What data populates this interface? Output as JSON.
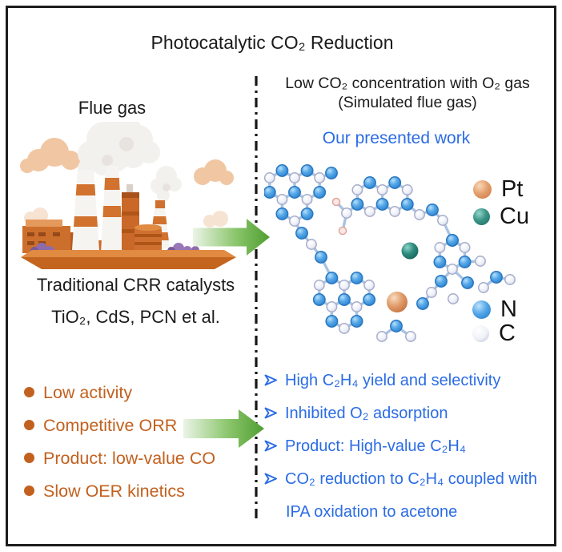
{
  "figure": {
    "title": "Photocatalytic CO₂ Reduction"
  },
  "left_panel": {
    "flue_gas_label": "Flue gas",
    "catalysts_title": "Traditional CRR catalysts",
    "catalysts_examples": "TiO₂, CdS, PCN et al.",
    "text_color": "#c2611f",
    "drawbacks": [
      "Low activity",
      "Competitive ORR",
      "Product: low-value CO",
      "Slow OER kinetics"
    ]
  },
  "right_panel": {
    "condition_line1": "Low CO₂ concentration with O₂ gas",
    "condition_line2": "(Simulated flue gas)",
    "highlight": "Our presented work",
    "text_color": "#2b6ce5",
    "legend": [
      {
        "name": "platinum",
        "symbol": "Pt",
        "color": "#d8875b"
      },
      {
        "name": "copper",
        "symbol": "Cu",
        "color": "#2c7f73"
      },
      {
        "name": "nitrogen",
        "symbol": "N",
        "color": "#3b97e0"
      },
      {
        "name": "carbon",
        "symbol": "C",
        "color": "#eef0f7"
      }
    ],
    "advantages": [
      "High C₂H₄ yield and selectivity",
      "Inhibited O₂ adsorption",
      "Product: High-value C₂H₄",
      "CO₂ reduction to C₂H₄ coupled with IPA oxidation to acetone"
    ]
  }
}
